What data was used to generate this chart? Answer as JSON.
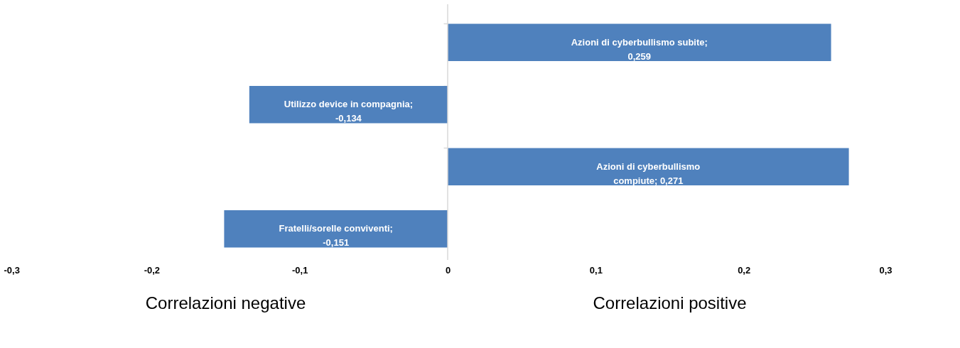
{
  "chart_data": {
    "type": "bar",
    "orientation": "horizontal",
    "categories": [
      null,
      null,
      null,
      null
    ],
    "values": [
      0.259,
      -0.134,
      0.271,
      -0.151
    ],
    "value_labels": [
      "Azioni di cyberbullismo subite; 0,259",
      "Utilizzo device in compagnia; -0,134",
      "Azioni di cyberbullismo compiute; 0,271",
      "Fratelli/sorelle conviventi; -0,151"
    ],
    "color": "#4f81bd",
    "xlim": [
      -0.3,
      0.3
    ],
    "xticks": [
      {
        "value": -0.3,
        "label": "-0,3"
      },
      {
        "value": -0.2,
        "label": "-0,2"
      },
      {
        "value": -0.1,
        "label": "-0,1"
      },
      {
        "value": 0,
        "label": "0"
      },
      {
        "value": 0.1,
        "label": "0,1"
      },
      {
        "value": 0.2,
        "label": "0,2"
      },
      {
        "value": 0.3,
        "label": "0,3"
      }
    ],
    "tick_labels": "x",
    "grid": false,
    "ref_lines": [
      {
        "axis": "x",
        "value": 0,
        "color": "#d9d9d9"
      }
    ],
    "annotations": [
      "Correlazioni negative",
      "Correlazioni positive"
    ]
  }
}
